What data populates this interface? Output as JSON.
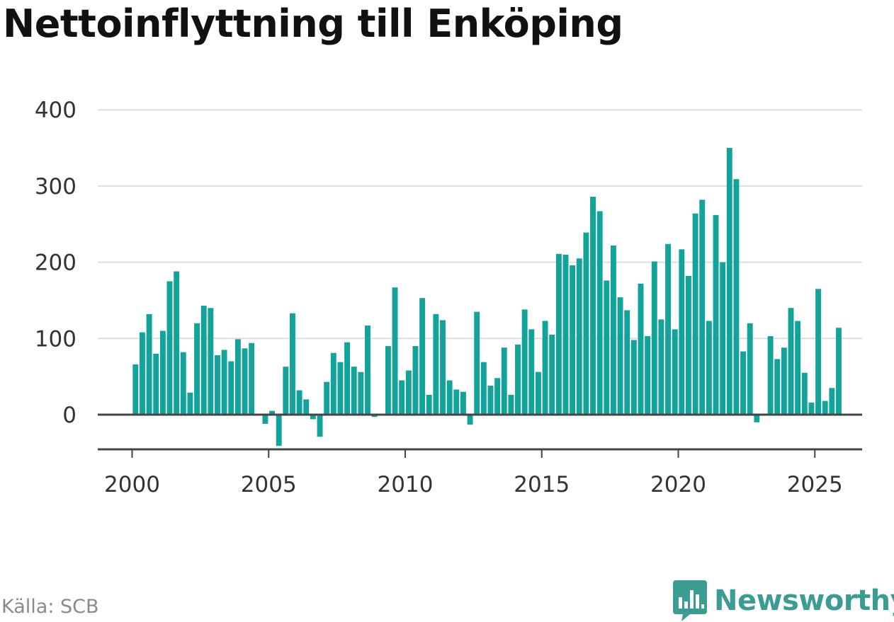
{
  "title": "Nettoinflyttning till Enköping",
  "source": "Källa: SCB",
  "brand": {
    "name": "Newsworthy",
    "icon": "newsworthy-logo-icon"
  },
  "colors": {
    "bar": "#12a39a",
    "grid": "#dddddd",
    "axis": "#444444",
    "brand": "#3a9c93"
  },
  "chart_data": {
    "type": "bar",
    "title": "Nettoinflyttning till Enköping",
    "xlabel": "",
    "ylabel": "",
    "ylim": [
      -45,
      400
    ],
    "xlim": [
      2000,
      2025.9
    ],
    "grid": true,
    "yticks": [
      0,
      100,
      200,
      300,
      400
    ],
    "xticks": [
      2000,
      2005,
      2010,
      2015,
      2020,
      2025
    ],
    "frequency": "quarterly",
    "series": [
      {
        "start": "2000 Q1",
        "values": [
          66,
          108,
          132,
          80,
          110,
          175,
          188,
          82,
          29,
          120,
          143,
          140,
          78,
          85,
          70,
          99,
          87,
          94,
          null,
          -12,
          5,
          -41,
          63,
          133,
          32,
          20,
          -6,
          -29,
          43,
          81,
          69,
          95,
          63,
          56,
          117,
          -3,
          null,
          90,
          167,
          45,
          58,
          90,
          153,
          26,
          132,
          124,
          45,
          33,
          30,
          -13,
          135,
          69,
          38,
          48,
          88,
          26,
          92,
          138,
          112,
          56,
          123,
          105,
          211,
          210,
          196,
          205,
          239,
          286,
          267,
          176,
          222,
          154,
          137,
          98,
          172,
          103,
          201,
          125,
          224,
          112,
          217,
          182,
          264,
          282,
          123,
          262,
          200,
          350,
          309,
          83,
          120,
          -10,
          null,
          103,
          73,
          88,
          140,
          123,
          55,
          16,
          165,
          18,
          35,
          114
        ]
      }
    ]
  }
}
